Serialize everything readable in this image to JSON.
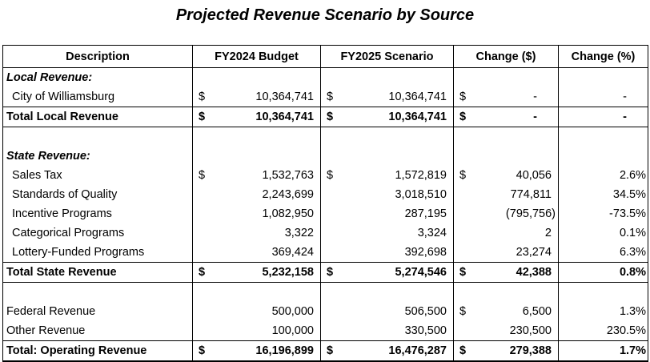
{
  "title": "Projected Revenue Scenario by Source",
  "headers": [
    "Description",
    "FY2024 Budget",
    "FY2025 Scenario",
    "Change ($)",
    "Change (%)"
  ],
  "sections": {
    "local_label": "Local Revenue:",
    "state_label": "State Revenue:"
  },
  "rows": {
    "williamsburg": {
      "label": "City of Williamsburg",
      "fy24": "10,364,741",
      "fy25": "10,364,741",
      "chg": "-",
      "pct": "-"
    },
    "total_local": {
      "label": "Total Local Revenue",
      "fy24": "10,364,741",
      "fy25": "10,364,741",
      "chg": "-",
      "pct": "-"
    },
    "sales_tax": {
      "label": "Sales Tax",
      "fy24": "1,532,763",
      "fy25": "1,572,819",
      "chg": "40,056",
      "pct": "2.6%"
    },
    "soq": {
      "label": "Standards of Quality",
      "fy24": "2,243,699",
      "fy25": "3,018,510",
      "chg": "774,811",
      "pct": "34.5%"
    },
    "incentive": {
      "label": "Incentive Programs",
      "fy24": "1,082,950",
      "fy25": "287,195",
      "chg": "(795,756)",
      "pct": "-73.5%"
    },
    "categorical": {
      "label": "Categorical Programs",
      "fy24": "3,322",
      "fy25": "3,324",
      "chg": "2",
      "pct": "0.1%"
    },
    "lottery": {
      "label": "Lottery-Funded Programs",
      "fy24": "369,424",
      "fy25": "392,698",
      "chg": "23,274",
      "pct": "6.3%"
    },
    "total_state": {
      "label": "Total State Revenue",
      "fy24": "5,232,158",
      "fy25": "5,274,546",
      "chg": "42,388",
      "pct": "0.8%"
    },
    "federal": {
      "label": "Federal Revenue",
      "fy24": "500,000",
      "fy25": "506,500",
      "chg": "6,500",
      "pct": "1.3%"
    },
    "other": {
      "label": "Other Revenue",
      "fy24": "100,000",
      "fy25": "330,500",
      "chg": "230,500",
      "pct": "230.5%"
    },
    "total_operating": {
      "label": "Total: Operating Revenue",
      "fy24": "16,196,899",
      "fy25": "16,476,287",
      "chg": "279,388",
      "pct": "1.7%"
    }
  },
  "currency_symbol": "$"
}
